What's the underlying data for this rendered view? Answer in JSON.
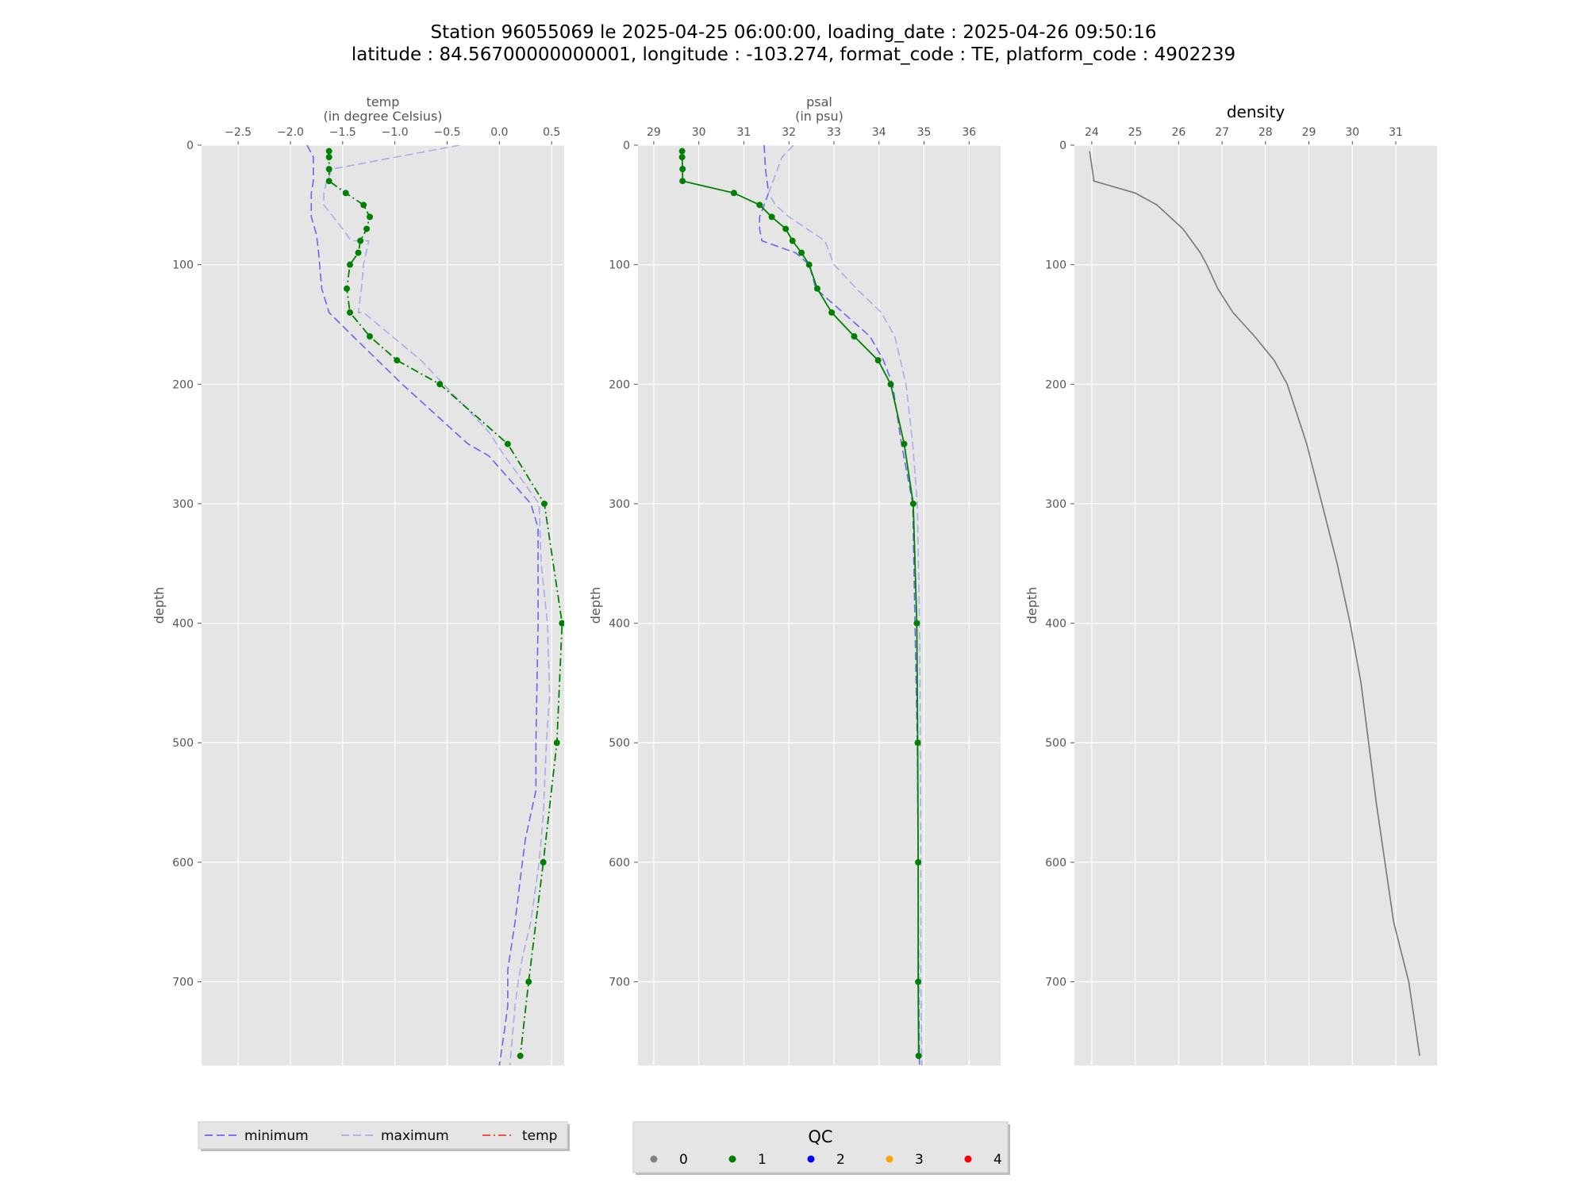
{
  "figure": {
    "title_line1": "Station 96055069 le 2025-04-25 06:00:00, loading_date : 2025-04-26 09:50:16",
    "title_line2": "latitude : 84.56700000000001, longitude : -103.274, format_code : TE, platform_code : 4902239"
  },
  "legend_lines": {
    "items": [
      {
        "label": "minimum",
        "color": "#6666ee",
        "style": "dashed"
      },
      {
        "label": "maximum",
        "color": "#aaaaee",
        "style": "dashed"
      },
      {
        "label": "temp",
        "color": "#ff3333",
        "style": "dashdot"
      }
    ]
  },
  "legend_qc": {
    "title": "QC",
    "items": [
      {
        "label": "0",
        "color": "#808080"
      },
      {
        "label": "1",
        "color": "#008000"
      },
      {
        "label": "2",
        "color": "#0000ff"
      },
      {
        "label": "3",
        "color": "#ffa500"
      },
      {
        "label": "4",
        "color": "#ff0000"
      }
    ]
  },
  "chart_data": [
    {
      "type": "line",
      "title": "temp",
      "xlabel_line1": "temp",
      "xlabel_line2": "(in degree Celsius)",
      "ylabel": "depth",
      "xlim": [
        -2.85,
        0.62
      ],
      "ylim": [
        770,
        0
      ],
      "xticks": [
        -2.5,
        -2.0,
        -1.5,
        -1.0,
        -0.5,
        0.0,
        0.5
      ],
      "xtick_labels": [
        "−2.5",
        "−2.0",
        "−1.5",
        "−1.0",
        "−0.5",
        "0.0",
        "0.5"
      ],
      "yticks": [
        0,
        100,
        200,
        300,
        400,
        500,
        600,
        700
      ],
      "ytick_labels": [
        "0",
        "100",
        "200",
        "300",
        "400",
        "500",
        "600",
        "700"
      ],
      "grid": true,
      "series": [
        {
          "name": "minimum",
          "style": "dashed",
          "color": "#6666ee",
          "x": [
            -1.84,
            -1.78,
            -1.78,
            -1.78,
            -1.8,
            -1.8,
            -1.75,
            -1.73,
            -1.72,
            -1.7,
            -1.63,
            -1.4,
            -0.93,
            -0.3,
            -0.1,
            0.3,
            0.37,
            0.37,
            0.37,
            0.35,
            0.35,
            0.25,
            0.22,
            0.15,
            0.08,
            0.08,
            0.05,
            0.0
          ],
          "y": [
            0,
            10,
            20,
            30,
            40,
            60,
            75,
            90,
            100,
            120,
            140,
            160,
            200,
            250,
            260,
            300,
            320,
            350,
            400,
            500,
            540,
            580,
            600,
            650,
            690,
            720,
            740,
            770
          ]
        },
        {
          "name": "maximum",
          "style": "dashed",
          "color": "#aaaaee",
          "x": [
            -0.38,
            -1.6,
            -1.65,
            -1.68,
            -1.68,
            -1.5,
            -1.42,
            -1.25,
            -1.3,
            -1.32,
            -1.35,
            -1.3,
            -0.75,
            -0.1,
            0.05,
            0.38,
            0.4,
            0.46,
            0.48,
            0.45,
            0.42,
            0.38,
            0.3,
            0.22,
            0.18,
            0.15,
            0.1
          ],
          "y": [
            0,
            20,
            30,
            40,
            50,
            70,
            80,
            80,
            100,
            120,
            140,
            140,
            180,
            240,
            260,
            300,
            350,
            400,
            460,
            500,
            560,
            600,
            650,
            680,
            700,
            720,
            770
          ]
        },
        {
          "name": "temp",
          "style": "dashdot",
          "color": "#008000",
          "markers": true,
          "x": [
            -1.63,
            -1.63,
            -1.63,
            -1.63,
            -1.47,
            -1.3,
            -1.24,
            -1.27,
            -1.33,
            -1.35,
            -1.43,
            -1.46,
            -1.43,
            -1.24,
            -0.98,
            -0.57,
            0.08,
            0.43,
            0.6,
            0.55,
            0.42,
            0.28,
            0.2
          ],
          "y": [
            5,
            10,
            20,
            30,
            40,
            50,
            60,
            70,
            80,
            90,
            100,
            120,
            140,
            160,
            180,
            200,
            250,
            300,
            400,
            500,
            600,
            700,
            762
          ]
        }
      ]
    },
    {
      "type": "line",
      "title": "psal",
      "xlabel_line1": "psal",
      "xlabel_line2": "(in psu)",
      "ylabel": "depth",
      "xlim": [
        28.65,
        36.7
      ],
      "ylim": [
        770,
        0
      ],
      "xticks": [
        29,
        30,
        31,
        32,
        33,
        34,
        35,
        36
      ],
      "xtick_labels": [
        "29",
        "30",
        "31",
        "32",
        "33",
        "34",
        "35",
        "36"
      ],
      "yticks": [
        0,
        100,
        200,
        300,
        400,
        500,
        600,
        700
      ],
      "ytick_labels": [
        "0",
        "100",
        "200",
        "300",
        "400",
        "500",
        "600",
        "700"
      ],
      "grid": true,
      "series": [
        {
          "name": "minimum",
          "style": "dashed",
          "color": "#6666ee",
          "x": [
            31.45,
            31.48,
            31.55,
            31.45,
            31.35,
            31.35,
            31.4,
            31.4,
            32.15,
            32.45,
            32.6,
            33.8,
            34.1,
            34.3,
            34.5,
            34.75,
            34.8,
            34.85,
            34.87,
            34.88,
            34.9
          ],
          "y": [
            0,
            20,
            40,
            50,
            60,
            70,
            80,
            80,
            90,
            100,
            120,
            160,
            180,
            200,
            250,
            300,
            400,
            500,
            600,
            700,
            770
          ]
        },
        {
          "name": "maximum",
          "style": "dashed",
          "color": "#aaaaee",
          "x": [
            32.1,
            31.85,
            31.75,
            31.65,
            31.55,
            31.7,
            32.0,
            32.8,
            33.0,
            33.5,
            34.05,
            34.35,
            34.6,
            34.75,
            34.85,
            34.9,
            34.92,
            34.93,
            34.93,
            34.95
          ],
          "y": [
            0,
            10,
            20,
            30,
            40,
            50,
            60,
            80,
            100,
            120,
            140,
            160,
            200,
            250,
            300,
            400,
            500,
            600,
            700,
            770
          ]
        },
        {
          "name": "psal",
          "style": "solid",
          "color": "#008000",
          "markers": true,
          "x": [
            29.63,
            29.63,
            29.64,
            29.64,
            30.78,
            31.35,
            31.62,
            31.93,
            32.08,
            32.28,
            32.45,
            32.63,
            32.95,
            33.45,
            33.98,
            34.26,
            34.56,
            34.76,
            34.84,
            34.86,
            34.87,
            34.87,
            34.88
          ],
          "y": [
            5,
            10,
            20,
            30,
            40,
            50,
            60,
            70,
            80,
            90,
            100,
            120,
            140,
            160,
            180,
            200,
            250,
            300,
            400,
            500,
            600,
            700,
            762
          ]
        }
      ]
    },
    {
      "type": "line",
      "title": "density",
      "ylabel": "depth",
      "xlim": [
        23.6,
        31.95
      ],
      "ylim": [
        770,
        0
      ],
      "xticks": [
        24,
        25,
        26,
        27,
        28,
        29,
        30,
        31
      ],
      "xtick_labels": [
        "24",
        "25",
        "26",
        "27",
        "28",
        "29",
        "30",
        "31"
      ],
      "yticks": [
        0,
        100,
        200,
        300,
        400,
        500,
        600,
        700
      ],
      "ytick_labels": [
        "0",
        "100",
        "200",
        "300",
        "400",
        "500",
        "600",
        "700"
      ],
      "grid": true,
      "series": [
        {
          "name": "density",
          "style": "solid",
          "color": "#777777",
          "x": [
            23.95,
            24.05,
            25.0,
            25.5,
            26.1,
            26.5,
            26.65,
            26.9,
            27.25,
            27.75,
            28.2,
            28.5,
            28.95,
            29.3,
            29.65,
            29.95,
            30.2,
            30.55,
            30.95,
            31.3,
            31.55
          ],
          "y": [
            5,
            30,
            40,
            50,
            70,
            90,
            100,
            120,
            140,
            160,
            180,
            200,
            250,
            300,
            350,
            400,
            450,
            550,
            650,
            700,
            762
          ]
        }
      ]
    }
  ]
}
